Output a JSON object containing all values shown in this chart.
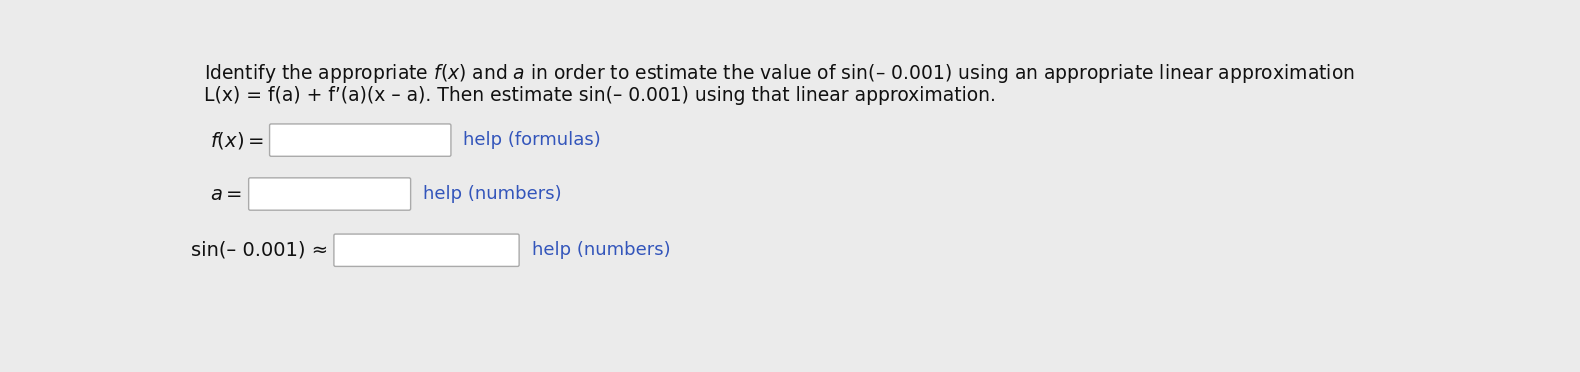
{
  "background_color": "#ebebeb",
  "title_line1": "Identify the appropriate $f(x)$ and $a$ in order to estimate the value of sin(– 0.001) using an appropriate linear approximation",
  "title_line2": "$L(x) = f(a) + f{\\textquotesingle}(a)(x - a)$. Then estimate sin(– 0.001) using that linear approximation.",
  "label1": "$f(x) =$",
  "label2": "$a =$",
  "label3": "sin(– 0.001) ≈",
  "help1": "help (formulas)",
  "help2": "help (numbers)",
  "help3": "help (numbers)",
  "help_color": "#3355bb",
  "box_facecolor": "#ffffff",
  "box_edgecolor": "#aaaaaa",
  "text_color": "#111111",
  "font_size_title": 13.5,
  "font_size_label": 14,
  "font_size_help": 13
}
